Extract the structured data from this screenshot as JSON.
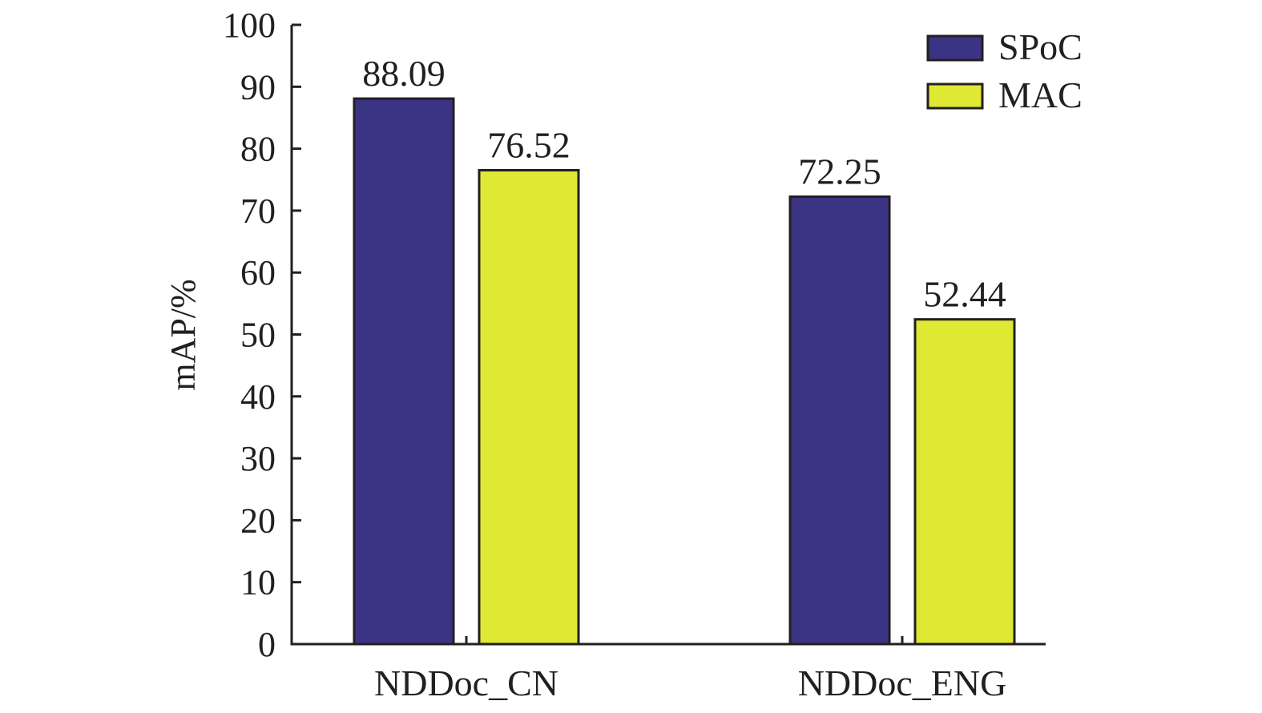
{
  "chart_data": {
    "type": "bar",
    "categories": [
      "NDDoc_CN",
      "NDDoc_ENG"
    ],
    "series": [
      {
        "name": "SPoC",
        "values": [
          88.09,
          72.25
        ],
        "value_labels": [
          "88.09",
          "72.25"
        ]
      },
      {
        "name": "MAC",
        "values": [
          76.52,
          52.44
        ],
        "value_labels": [
          "76.52",
          "52.44"
        ]
      }
    ],
    "title": "",
    "xlabel": "",
    "ylabel": "mAP/%",
    "ylim": [
      0,
      100
    ],
    "yticks": [
      0,
      10,
      20,
      30,
      40,
      50,
      60,
      70,
      80,
      90,
      100
    ],
    "grid": false,
    "legend_position": "top-right",
    "colors": {
      "SPoC": "#3b3484",
      "MAC": "#dfe833",
      "outline": "#231f20"
    }
  }
}
